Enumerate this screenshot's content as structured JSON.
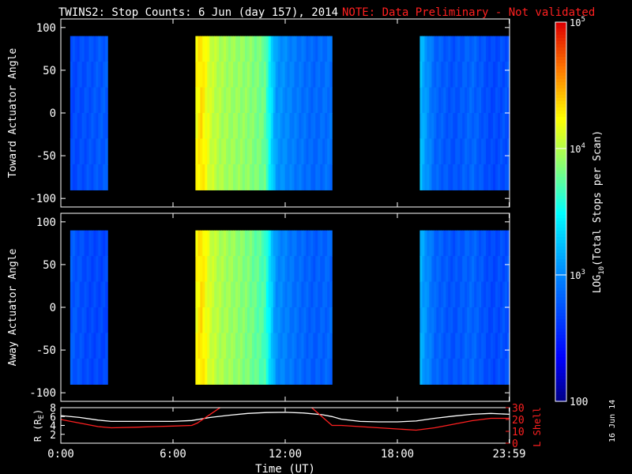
{
  "title": "TWINS2: Stop Counts:  6 Jun (day 157), 2014",
  "note": "NOTE: Data Preliminary - Not validated",
  "date_stamp": "16 Jun 14",
  "colors": {
    "background": "#000000",
    "axis": "#ffffff",
    "note": "#ff2020",
    "r_line": "#ffffff",
    "lshell_line": "#ff2020"
  },
  "chart_data": [
    {
      "type": "heatmap",
      "panel": "top",
      "ylabel": "Toward Actuator Angle",
      "ylim": [
        -110,
        110
      ],
      "yticks": [
        100,
        50,
        0,
        -50,
        -100
      ],
      "data_angle_range": [
        -90,
        90
      ],
      "xlim_hours": [
        0,
        24
      ],
      "data_intervals_hours": [
        [
          0.5,
          2.5
        ],
        [
          7.2,
          14.5
        ],
        [
          19.2,
          24
        ]
      ],
      "time_columns": [
        {
          "t": 0.5,
          "log_counts": 2.7
        },
        {
          "t": 1.5,
          "log_counts": 2.75
        },
        {
          "t": 2.4,
          "log_counts": 2.8
        },
        {
          "t": 7.2,
          "log_counts": 4.2
        },
        {
          "t": 7.5,
          "log_counts": 4.35
        },
        {
          "t": 8.0,
          "log_counts": 4.1
        },
        {
          "t": 8.5,
          "log_counts": 4.0
        },
        {
          "t": 9.0,
          "log_counts": 3.95
        },
        {
          "t": 10.0,
          "log_counts": 3.9
        },
        {
          "t": 10.9,
          "log_counts": 3.8
        },
        {
          "t": 11.5,
          "log_counts": 3.1
        },
        {
          "t": 12.5,
          "log_counts": 2.95
        },
        {
          "t": 13.5,
          "log_counts": 2.85
        },
        {
          "t": 14.4,
          "log_counts": 2.9
        },
        {
          "t": 19.2,
          "log_counts": 3.25
        },
        {
          "t": 20.0,
          "log_counts": 2.85
        },
        {
          "t": 21.0,
          "log_counts": 2.75
        },
        {
          "t": 22.0,
          "log_counts": 2.85
        },
        {
          "t": 23.0,
          "log_counts": 2.7
        },
        {
          "t": 23.9,
          "log_counts": 2.75
        }
      ]
    },
    {
      "type": "heatmap",
      "panel": "middle",
      "ylabel": "Away Actuator Angle",
      "ylim": [
        -110,
        110
      ],
      "yticks": [
        100,
        50,
        0,
        -50,
        -100
      ],
      "data_angle_range": [
        -90,
        90
      ],
      "xlim_hours": [
        0,
        24
      ],
      "data_intervals_hours": [
        [
          0.5,
          2.5
        ],
        [
          7.2,
          14.5
        ],
        [
          19.2,
          24
        ]
      ],
      "time_columns": [
        {
          "t": 0.5,
          "log_counts": 2.8
        },
        {
          "t": 1.5,
          "log_counts": 2.7
        },
        {
          "t": 2.4,
          "log_counts": 2.7
        },
        {
          "t": 7.2,
          "log_counts": 4.2
        },
        {
          "t": 7.5,
          "log_counts": 4.35
        },
        {
          "t": 8.0,
          "log_counts": 4.1
        },
        {
          "t": 8.5,
          "log_counts": 4.0
        },
        {
          "t": 9.0,
          "log_counts": 3.95
        },
        {
          "t": 10.0,
          "log_counts": 3.85
        },
        {
          "t": 10.9,
          "log_counts": 3.7
        },
        {
          "t": 11.5,
          "log_counts": 3.05
        },
        {
          "t": 12.5,
          "log_counts": 2.9
        },
        {
          "t": 13.5,
          "log_counts": 2.8
        },
        {
          "t": 14.4,
          "log_counts": 2.85
        },
        {
          "t": 19.2,
          "log_counts": 3.2
        },
        {
          "t": 20.0,
          "log_counts": 2.85
        },
        {
          "t": 21.0,
          "log_counts": 2.75
        },
        {
          "t": 22.0,
          "log_counts": 2.85
        },
        {
          "t": 23.0,
          "log_counts": 2.7
        },
        {
          "t": 23.9,
          "log_counts": 2.75
        }
      ]
    },
    {
      "type": "line",
      "panel": "bottom",
      "xlabel": "Time (UT)",
      "xticks": [
        "0:00",
        "6:00",
        "12:00",
        "18:00",
        "23:59"
      ],
      "xtick_hours": [
        0,
        6,
        12,
        18,
        23.98
      ],
      "ylabel_left": "R (R",
      "ylabel_left_sub": "E",
      "ylabel_left_end": ")",
      "yticks_left": [
        8,
        6,
        4,
        2
      ],
      "ylim_left": [
        0,
        8
      ],
      "ylabel_right": "L Shell",
      "yticks_right": [
        30,
        20,
        10,
        0
      ],
      "ylim_right": [
        0,
        30
      ],
      "series": [
        {
          "axis": "left",
          "x": [
            0,
            1,
            2,
            2.7,
            4,
            5,
            6,
            7,
            8,
            9,
            10,
            11,
            12,
            13,
            14,
            14.5,
            15,
            16,
            17,
            18,
            19,
            20,
            21,
            22,
            23,
            24
          ],
          "y": [
            6.2,
            5.8,
            5.2,
            4.9,
            4.9,
            4.9,
            4.9,
            5.1,
            5.8,
            6.3,
            6.7,
            6.9,
            6.95,
            6.8,
            6.4,
            6.0,
            5.4,
            4.9,
            4.8,
            4.8,
            5.0,
            5.6,
            6.1,
            6.5,
            6.7,
            6.5
          ]
        },
        {
          "axis": "right",
          "x": [
            0,
            1,
            2,
            2.7,
            4,
            5,
            6,
            7,
            7.3,
            8.8,
            13.2,
            14.5,
            15,
            16,
            17,
            18,
            19,
            20,
            21,
            22,
            23,
            24
          ],
          "y": [
            20,
            17,
            14,
            13,
            13.5,
            14,
            14.5,
            15,
            17,
            33,
            33,
            15,
            15,
            14,
            13,
            12,
            11,
            13,
            16,
            19,
            21,
            21
          ]
        }
      ]
    },
    {
      "type": "heatmap",
      "panel": "colorbar",
      "label": "LOG",
      "label_sub": "10",
      "label_end": "(Total Stops per Scan)",
      "tick_base": "10",
      "tick_labels": [
        "5",
        "4",
        "3"
      ],
      "tick_values": [
        5,
        4,
        3
      ],
      "bottom_label": "100",
      "range_log": [
        2,
        5
      ]
    }
  ]
}
